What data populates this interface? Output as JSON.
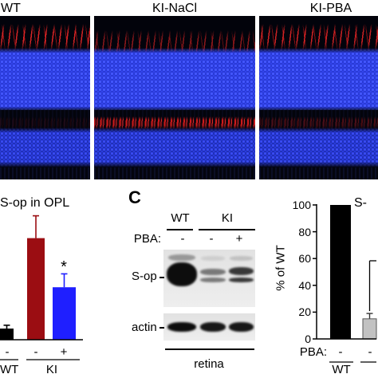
{
  "micrographs": [
    {
      "label": "WT"
    },
    {
      "label": "KI-NaCl"
    },
    {
      "label": "KI-PBA"
    }
  ],
  "blot": {
    "panel_label": "C",
    "groups": [
      {
        "label": "WT"
      },
      {
        "label": "KI"
      }
    ],
    "row_label": "PBA:",
    "lanes": [
      {
        "treatment": "-",
        "sop": 1.0,
        "actin": 1.0
      },
      {
        "treatment": "-",
        "sop": 0.5,
        "actin": 0.95
      },
      {
        "treatment": "+",
        "sop": 0.8,
        "actin": 0.95
      }
    ],
    "band_labels": {
      "sop": "S-op",
      "actin": "actin"
    },
    "tissue": "retina"
  },
  "chart_data": [
    {
      "type": "bar",
      "title": "S-op in OPL",
      "categories": [
        "-",
        "-",
        "+"
      ],
      "groups": [
        {
          "label": "WT"
        },
        {
          "label": "KI"
        }
      ],
      "values": [
        1.0,
        9.1,
        4.7
      ],
      "errors": [
        0.3,
        2.0,
        1.2
      ],
      "colors": [
        "#000000",
        "#9b0d12",
        "#1f1fff"
      ],
      "annotations": [
        "",
        "",
        "*"
      ],
      "ylim": [
        0,
        11.5
      ],
      "xlabel": "",
      "ylabel": ""
    },
    {
      "type": "bar",
      "title": "S-",
      "row_label": "PBA:",
      "categories": [
        "-",
        "-"
      ],
      "groups": [
        {
          "label": "WT"
        }
      ],
      "values": [
        100,
        15
      ],
      "errors": [
        0,
        4
      ],
      "colors": [
        "#000000",
        "#c2c2c2"
      ],
      "xlabel": "",
      "ylabel": "% of WT",
      "ylim": [
        0,
        100
      ],
      "yticks": [
        "0",
        "20",
        "40",
        "60",
        "80",
        "100"
      ]
    }
  ]
}
